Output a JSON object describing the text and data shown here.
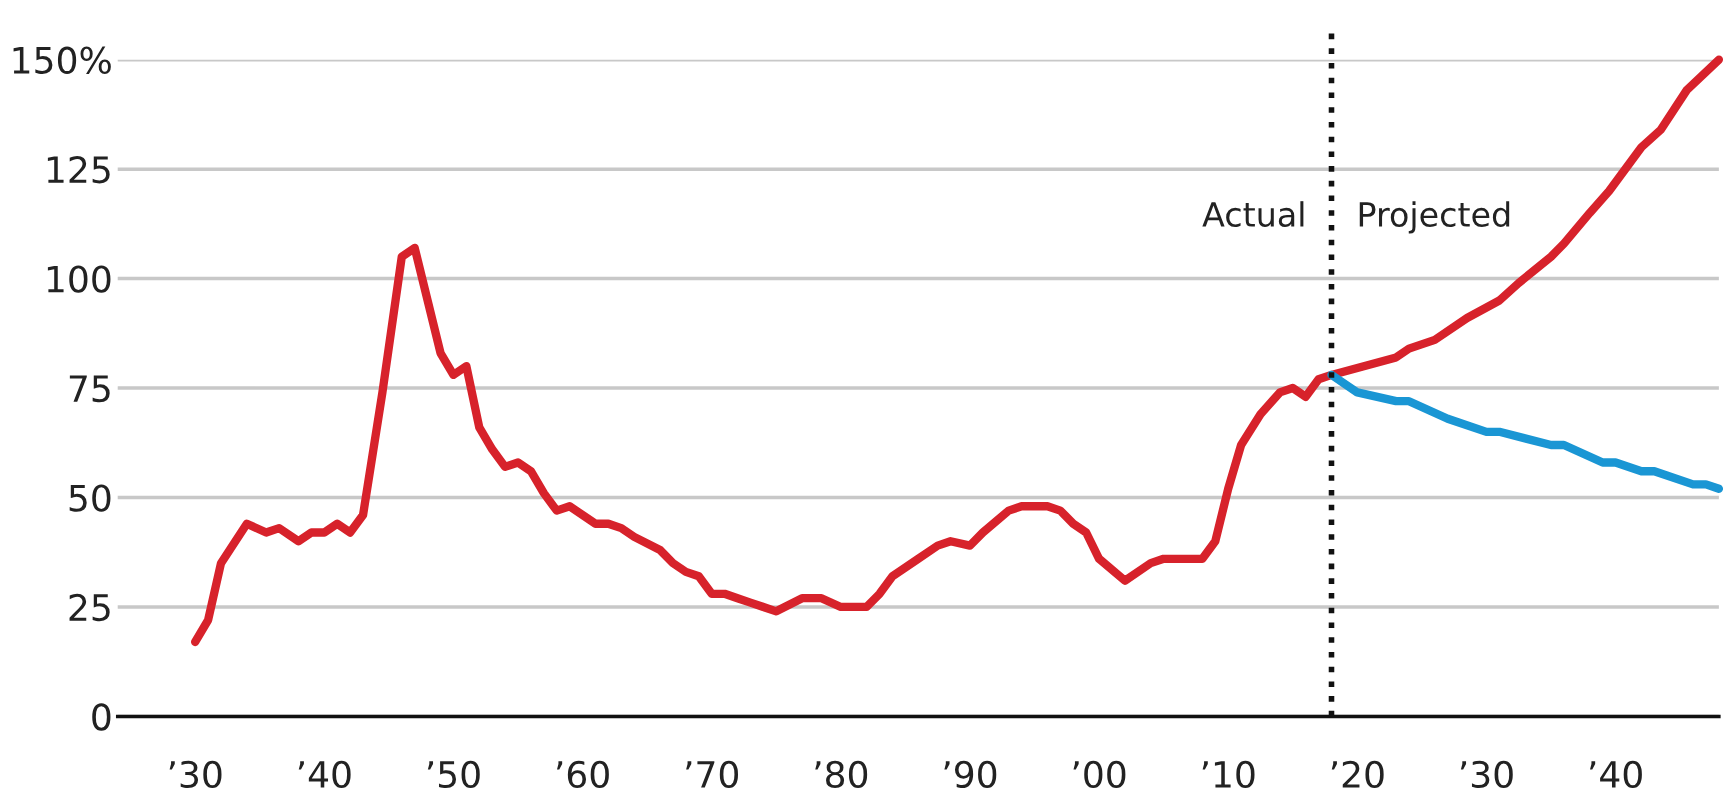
{
  "chart_data": {
    "type": "line",
    "series": [
      {
        "color": "#d7222b",
        "x": [
          1930,
          1931,
          1932,
          1934,
          1935.5,
          1936.5,
          1938,
          1939,
          1940,
          1941,
          1942,
          1943,
          1944.5,
          1946,
          1947,
          1948,
          1949,
          1950,
          1951,
          1952,
          1953,
          1954,
          1955,
          1956,
          1957,
          1958,
          1959,
          1960,
          1961,
          1962,
          1963,
          1964,
          1966,
          1967,
          1968,
          1969,
          1970,
          1971,
          1972,
          1973,
          1974,
          1975,
          1977,
          1978.5,
          1980,
          1982,
          1983,
          1984,
          1985,
          1986,
          1987.5,
          1988.5,
          1990,
          1991,
          1993,
          1994,
          1996,
          1997,
          1998,
          1999,
          2000,
          2002,
          2004,
          2005,
          2006.5,
          2008,
          2009,
          2010,
          2011,
          2012.5,
          2014,
          2015,
          2016,
          2017,
          2018,
          2020.5,
          2023,
          2024,
          2026,
          2028.5,
          2031,
          2032.5,
          2035,
          2036,
          2038,
          2039.5,
          2040.5,
          2042,
          2043.5,
          2045.5,
          2048
        ],
        "values": [
          17,
          22,
          35,
          44,
          42,
          43,
          40,
          42,
          42,
          44,
          42,
          46,
          74,
          105,
          107,
          95,
          83,
          78,
          80,
          66,
          61,
          57,
          58,
          56,
          51,
          47,
          48,
          46,
          44,
          44,
          43,
          41,
          38,
          35,
          33,
          32,
          28,
          28,
          27,
          26,
          25,
          24,
          27,
          27,
          25,
          25,
          28,
          32,
          34,
          36,
          39,
          40,
          39,
          42,
          47,
          48,
          48,
          47,
          44,
          42,
          36,
          31,
          35,
          36,
          36,
          36,
          40,
          52,
          62,
          69,
          74,
          75,
          73,
          77,
          78,
          80,
          82,
          84,
          86,
          91,
          95,
          99,
          105,
          108,
          115,
          120,
          124,
          130,
          134,
          143,
          150
        ]
      },
      {
        "color": "#1a96d4",
        "x": [
          2018,
          2020,
          2023,
          2024,
          2027,
          2030,
          2031,
          2035,
          2036,
          2039,
          2040,
          2042,
          2043,
          2046,
          2047,
          2048
        ],
        "values": [
          78,
          74,
          72,
          72,
          68,
          65,
          65,
          62,
          62,
          58,
          58,
          56,
          56,
          53,
          53,
          52
        ]
      }
    ],
    "xlim": [
      1924,
      2048
    ],
    "xticks": [
      {
        "value": 1930,
        "label": "’30"
      },
      {
        "value": 1940,
        "label": "’40"
      },
      {
        "value": 1950,
        "label": "’50"
      },
      {
        "value": 1960,
        "label": "’60"
      },
      {
        "value": 1970,
        "label": "’70"
      },
      {
        "value": 1980,
        "label": "’80"
      },
      {
        "value": 1990,
        "label": "’90"
      },
      {
        "value": 2000,
        "label": "’00"
      },
      {
        "value": 2010,
        "label": "’10"
      },
      {
        "value": 2020,
        "label": "’20"
      },
      {
        "value": 2030,
        "label": "’30"
      },
      {
        "value": 2040,
        "label": "’40"
      }
    ],
    "ylim": [
      0,
      150
    ],
    "yticks": [
      0,
      25,
      50,
      75,
      100,
      125,
      {
        "value": 150,
        "label": "150%"
      }
    ],
    "grid": "y",
    "ref_lines": [
      {
        "axis": "x",
        "value": 2018,
        "label": null,
        "color": "#111111",
        "line_style": "dotted"
      }
    ],
    "annotations": [
      "Actual",
      "Projected"
    ]
  }
}
